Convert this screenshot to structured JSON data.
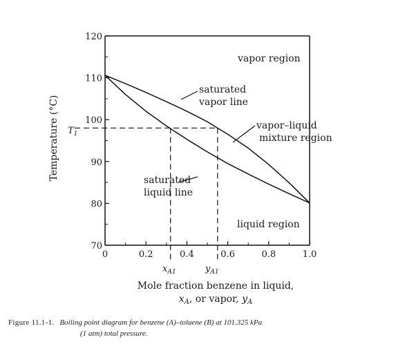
{
  "chart_data": {
    "type": "line",
    "xlabel_line1": "Mole fraction benzene in liquid,",
    "xlabel_line2": "x",
    "xlabel_line2_sub": "A",
    "xlabel_line2_mid": ", or vapor, ",
    "xlabel_line2_y": "y",
    "xlabel_line2_ysub": "A",
    "ylabel": "Temperature (°C)",
    "xlim": [
      0,
      1.0
    ],
    "ylim": [
      70,
      120
    ],
    "x_ticks": [
      0,
      0.2,
      0.4,
      0.6,
      0.8,
      1.0
    ],
    "x_tick_labels": [
      "0",
      "0.2",
      "0.4",
      "0.6",
      "0.8",
      "1.0"
    ],
    "y_ticks": [
      70,
      80,
      90,
      100,
      110,
      120
    ],
    "y_tick_labels": [
      "70",
      "80",
      "90",
      "100",
      "110",
      "120"
    ],
    "series": [
      {
        "name": "saturated vapor line",
        "x": [
          0.0,
          0.1,
          0.2,
          0.3,
          0.4,
          0.5,
          0.6,
          0.7,
          0.8,
          0.9,
          1.0
        ],
        "y": [
          110.6,
          108.6,
          106.5,
          104.3,
          102.0,
          99.5,
          96.5,
          93.2,
          89.3,
          84.9,
          80.1
        ]
      },
      {
        "name": "saturated liquid line",
        "x": [
          0.0,
          0.1,
          0.2,
          0.3,
          0.4,
          0.5,
          0.6,
          0.7,
          0.8,
          0.9,
          1.0
        ],
        "y": [
          110.6,
          106.0,
          102.0,
          98.5,
          95.3,
          92.3,
          89.5,
          87.0,
          84.6,
          82.3,
          80.1
        ]
      }
    ],
    "T1_value": 98,
    "xA1_value": 0.32,
    "yA1_value": 0.55,
    "T1_label": "T",
    "T1_sub": "1",
    "xA1_label": "x",
    "xA1_sub": "A1",
    "yA1_label": "y",
    "yA1_sub": "A1",
    "annotations": {
      "vapor_region": "vapor region",
      "liquid_region": "liquid region",
      "sat_vapor_1": "saturated",
      "sat_vapor_2": "vapor line",
      "mixture_1": "vapor–liquid",
      "mixture_2": "mixture region",
      "sat_liquid_1": "saturated",
      "sat_liquid_2": "liquid line"
    }
  },
  "caption": {
    "label": "Figure 11.1-1.",
    "text_line1": "Boiling point diagram for benzene (A)–toluene (B) at 101.325 kPa",
    "text_line2": "(1 atm) total pressure."
  }
}
